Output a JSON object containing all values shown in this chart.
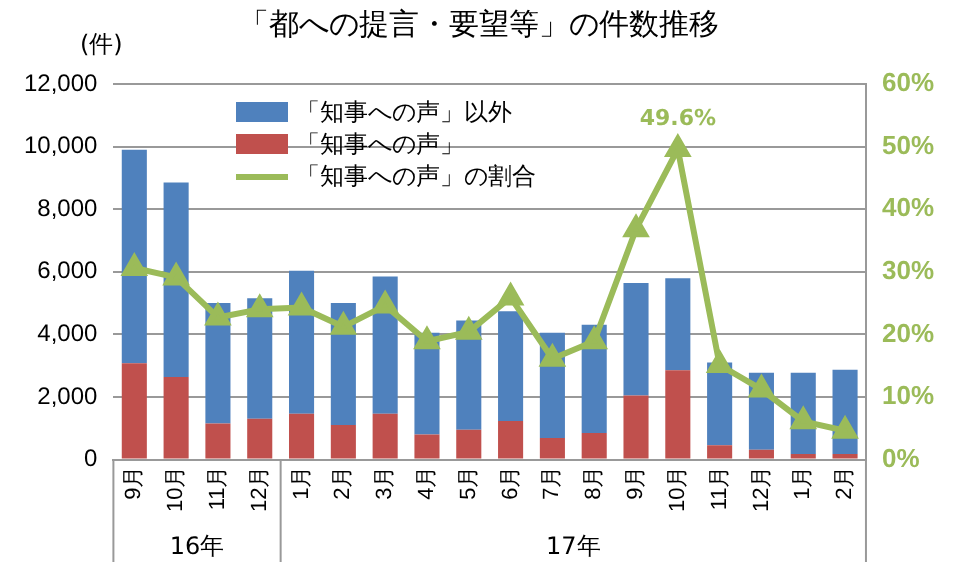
{
  "chart_data": {
    "type": "bar",
    "title": "「都への提言・要望等」の件数推移",
    "ylabel": "(件)",
    "categories": [
      "9月",
      "10月",
      "11月",
      "12月",
      "1月",
      "2月",
      "3月",
      "4月",
      "5月",
      "6月",
      "7月",
      "8月",
      "9月",
      "10月",
      "11月",
      "12月",
      "1月",
      "2月"
    ],
    "annotations": [
      "16年",
      "17年"
    ],
    "stacked": true,
    "series": [
      {
        "name": "「知事への声」",
        "color": "#c0504d",
        "values": [
          3080,
          2640,
          1150,
          1300,
          1460,
          1100,
          1460,
          800,
          950,
          1230,
          690,
          850,
          2050,
          2850,
          460,
          310,
          180,
          180
        ]
      },
      {
        "name": "「知事への声」以外",
        "color": "#4f81bd",
        "values": [
          6820,
          6210,
          3850,
          3850,
          4570,
          3900,
          4390,
          3250,
          3490,
          3510,
          3360,
          3460,
          3590,
          2940,
          2640,
          2460,
          2590,
          2690
        ]
      },
      {
        "name": "「知事への声」の割合",
        "type": "line",
        "axis": "y2",
        "color": "#9bbb59",
        "marker": "triangle",
        "values": [
          30.6,
          29.1,
          22.7,
          24.0,
          24.3,
          21.2,
          24.6,
          18.9,
          20.4,
          25.9,
          16.1,
          18.9,
          36.8,
          49.6,
          15.1,
          11.2,
          6.1,
          4.6
        ],
        "value_labels": [
          null,
          null,
          null,
          null,
          null,
          null,
          null,
          null,
          null,
          null,
          null,
          null,
          null,
          "49.6%",
          null,
          null,
          null,
          null
        ]
      }
    ],
    "ylim": [
      0,
      12000
    ],
    "yticks": [
      0,
      {
        "value": 2000,
        "label": "2,000"
      },
      {
        "value": 4000,
        "label": "4,000"
      },
      {
        "value": 6000,
        "label": "6,000"
      },
      {
        "value": 8000,
        "label": "8,000"
      },
      {
        "value": 10000,
        "label": "10,000"
      },
      {
        "value": 12000,
        "label": "12,000"
      }
    ],
    "y2lim": [
      0,
      60
    ],
    "y2ticks": [
      {
        "value": 0,
        "label": "0%"
      },
      {
        "value": 10,
        "label": "10%"
      },
      {
        "value": 20,
        "label": "20%"
      },
      {
        "value": 30,
        "label": "30%"
      },
      {
        "value": 40,
        "label": "40%"
      },
      {
        "value": 50,
        "label": "50%"
      },
      {
        "value": 60,
        "label": "60%"
      }
    ],
    "grid": "y",
    "legend": "top left"
  }
}
